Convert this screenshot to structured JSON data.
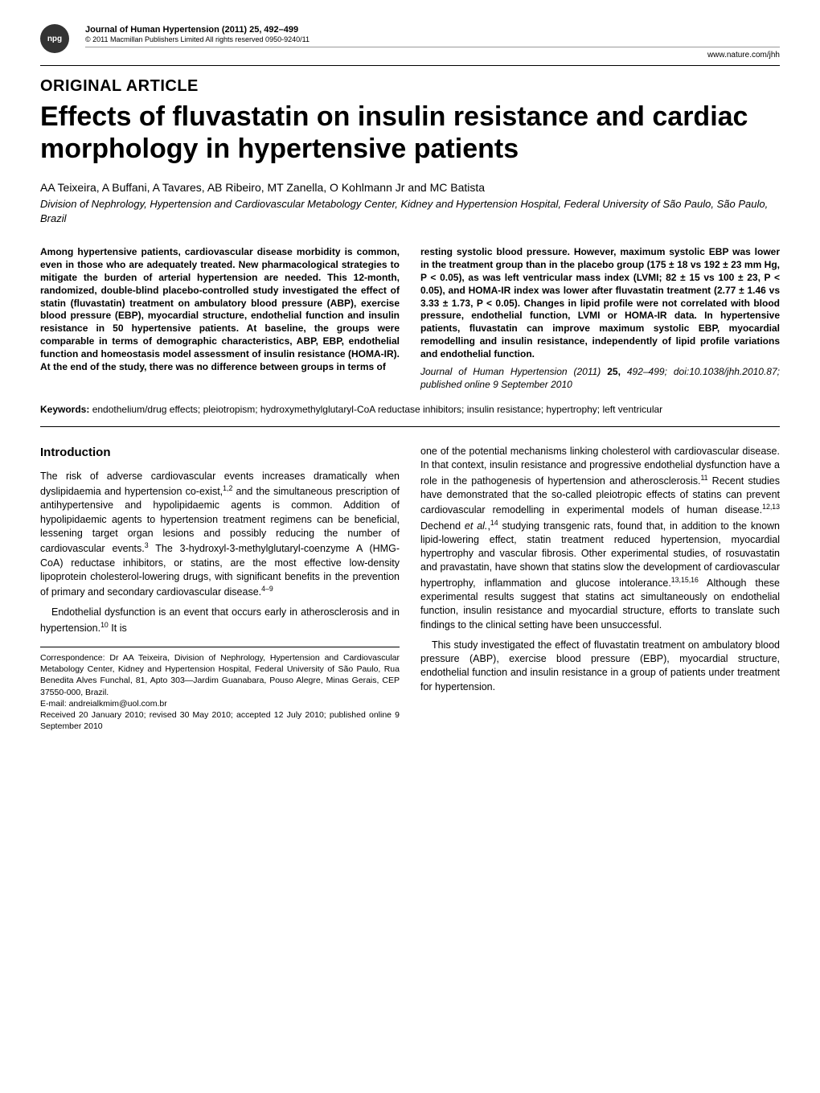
{
  "header": {
    "badge": "npg",
    "journal_title": "Journal of Human Hypertension (2011) 25,",
    "pages": "492–499",
    "copyright": "© 2011 Macmillan Publishers Limited   All rights reserved 0950-9240/11",
    "url": "www.nature.com/jhh"
  },
  "article": {
    "type": "ORIGINAL ARTICLE",
    "title": "Effects of fluvastatin on insulin resistance and cardiac morphology in hypertensive patients",
    "authors": "AA Teixeira, A Buffani, A Tavares, AB Ribeiro, MT Zanella, O Kohlmann Jr and MC Batista",
    "affiliation": "Division of Nephrology, Hypertension and Cardiovascular Metabology Center, Kidney and Hypertension Hospital, Federal University of São Paulo, São Paulo, Brazil"
  },
  "abstract": {
    "left": "Among hypertensive patients, cardiovascular disease morbidity is common, even in those who are adequately treated. New pharmacological strategies to mitigate the burden of arterial hypertension are needed. This 12-month, randomized, double-blind placebo-controlled study investigated the effect of statin (fluvastatin) treatment on ambulatory blood pressure (ABP), exercise blood pressure (EBP), myocardial structure, endothelial function and insulin resistance in 50 hypertensive patients. At baseline, the groups were comparable in terms of demographic characteristics, ABP, EBP, endothelial function and homeostasis model assessment of insulin resistance (HOMA-IR). At the end of the study, there was no difference between groups in terms of",
    "right": "resting systolic blood pressure. However, maximum systolic EBP was lower in the treatment group than in the placebo group (175 ± 18 vs 192 ± 23 mm Hg, P < 0.05), as was left ventricular mass index (LVMI; 82 ± 15 vs 100 ± 23, P < 0.05), and HOMA-IR index was lower after fluvastatin treatment (2.77 ± 1.46 vs 3.33 ± 1.73, P < 0.05). Changes in lipid profile were not correlated with blood pressure, endothelial function, LVMI or HOMA-IR data. In hypertensive patients, fluvastatin can improve maximum systolic EBP, myocardial remodelling and insulin resistance, independently of lipid profile variations and endothelial function.",
    "citation_journal": "Journal of Human Hypertension",
    "citation_year": "(2011)",
    "citation_vol": "25,",
    "citation_pages": "492–499;",
    "citation_doi": "doi:10.1038/jhh.2010.87; published online 9 September 2010"
  },
  "keywords": {
    "label": "Keywords:",
    "text": "endothelium/drug effects; pleiotropism; hydroxymethylglutaryl-CoA reductase inhibitors; insulin resistance; hypertrophy; left ventricular"
  },
  "body": {
    "heading": "Introduction",
    "left_p1_html": "The risk of adverse cardiovascular events increases dramatically when dyslipidaemia and hypertension co-exist,<sup>1,2</sup> and the simultaneous prescription of antihypertensive and hypolipidaemic agents is common. Addition of hypolipidaemic agents to hypertension treatment regimens can be beneficial, lessening target organ lesions and possibly reducing the number of cardiovascular events.<sup>3</sup> The 3-hydroxyl-3-methylglutaryl-coenzyme A (HMG-CoA) reductase inhibitors, or statins, are the most effective low-density lipoprotein cholesterol-lowering drugs, with significant benefits in the prevention of primary and secondary cardiovascular disease.<sup>4–9</sup>",
    "left_p2_html": "Endothelial dysfunction is an event that occurs early in atherosclerosis and in hypertension.<sup>10</sup> It is",
    "right_p1_html": "one of the potential mechanisms linking cholesterol with cardiovascular disease. In that context, insulin resistance and progressive endothelial dysfunction have a role in the pathogenesis of hypertension and atherosclerosis.<sup>11</sup> Recent studies have demonstrated that the so-called pleiotropic effects of statins can prevent cardiovascular remodelling in experimental models of human disease.<sup>12,13</sup> Dechend <i>et al.</i>,<sup>14</sup> studying transgenic rats, found that, in addition to the known lipid-lowering effect, statin treatment reduced hypertension, myocardial hypertrophy and vascular fibrosis. Other experimental studies, of rosuvastatin and pravastatin, have shown that statins slow the development of cardiovascular hypertrophy, inflammation and glucose intolerance.<sup>13,15,16</sup> Although these experimental results suggest that statins act simultaneously on endothelial function, insulin resistance and myocardial structure, efforts to translate such findings to the clinical setting have been unsuccessful.",
    "right_p2_html": "This study investigated the effect of fluvastatin treatment on ambulatory blood pressure (ABP), exercise blood pressure (EBP), myocardial structure, endothelial function and insulin resistance in a group of patients under treatment for hypertension."
  },
  "correspondence": {
    "text": "Correspondence: Dr AA Teixeira, Division of Nephrology, Hypertension and Cardiovascular Metabology Center, Kidney and Hypertension Hospital, Federal University of São Paulo, Rua Benedita Alves Funchal, 81, Apto 303—Jardim Guanabara, Pouso Alegre, Minas Gerais, CEP 37550-000, Brazil.",
    "email": "E-mail: andreialkmim@uol.com.br",
    "received": "Received 20 January 2010; revised 30 May 2010; accepted 12 July 2010; published online 9 September 2010"
  }
}
